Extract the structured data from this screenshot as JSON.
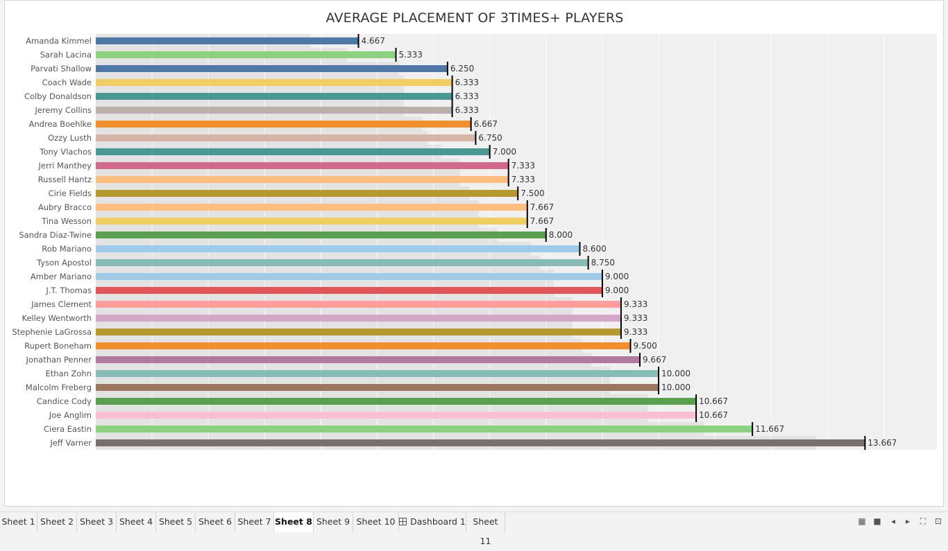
{
  "chart_data": {
    "type": "bar",
    "orientation": "horizontal",
    "title": "AVERAGE PLACEMENT OF 3TIMES+ PLAYERS",
    "xlabel": "",
    "ylabel": "",
    "xlim": [
      0,
      15
    ],
    "grid": true,
    "categories": [
      "Amanda Kimmel",
      "Sarah Lacina",
      "Parvati Shallow",
      "Coach Wade",
      "Colby Donaldson",
      "Jeremy Collins",
      "Andrea Boehlke",
      "Ozzy Lusth",
      "Tony Vlachos",
      "Jerri Manthey",
      "Russell Hantz",
      "Cirie Fields",
      "Aubry Bracco",
      "Tina Wesson",
      "Sandra Diaz-Twine",
      "Rob Mariano",
      "Tyson Apostol",
      "Amber Mariano",
      "J.T. Thomas",
      "James Clement",
      "Kelley Wentworth",
      "Stephenie LaGrossa",
      "Rupert Boneham",
      "Jonathan Penner",
      "Ethan Zohn",
      "Malcolm Freberg",
      "Candice Cody",
      "Joe Anglim",
      "Ciera Eastin",
      "Jeff Varner"
    ],
    "values": [
      4.667,
      5.333,
      6.25,
      6.333,
      6.333,
      6.333,
      6.667,
      6.75,
      7.0,
      7.333,
      7.333,
      7.5,
      7.667,
      7.667,
      8.0,
      8.6,
      8.75,
      9.0,
      9.0,
      9.333,
      9.333,
      9.333,
      9.5,
      9.667,
      10.0,
      10.0,
      10.667,
      10.667,
      11.667,
      13.667
    ],
    "value_labels": [
      "4.667",
      "5.333",
      "6.250",
      "6.333",
      "6.333",
      "6.333",
      "6.667",
      "6.750",
      "7.000",
      "7.333",
      "7.333",
      "7.500",
      "7.667",
      "7.667",
      "8.000",
      "8.600",
      "8.750",
      "9.000",
      "9.000",
      "9.333",
      "9.333",
      "9.333",
      "9.500",
      "9.667",
      "10.000",
      "10.000",
      "10.667",
      "10.667",
      "11.667",
      "13.667"
    ],
    "colors": [
      "#4e79a7",
      "#8cd17d",
      "#4e79a7",
      "#f1ce63",
      "#499894",
      "#bab0ac",
      "#f28e2b",
      "#d7b5a6",
      "#499894",
      "#d4698f",
      "#ffbe7d",
      "#b6992d",
      "#ffbe7d",
      "#f1ce63",
      "#59a14f",
      "#a0cbe8",
      "#86bcb6",
      "#a0cbe8",
      "#e15759",
      "#ff9d9a",
      "#d4a6c8",
      "#b6992d",
      "#f28e2b",
      "#b07aa1",
      "#86bcb6",
      "#9d7660",
      "#59a14f",
      "#fabfd2",
      "#8cd17d",
      "#79706e"
    ],
    "reference_line_color": "#000000",
    "background_band_color": "#f0f0f0"
  },
  "tabs": [
    {
      "label": "Sheet 1",
      "active": false
    },
    {
      "label": "Sheet 2",
      "active": false
    },
    {
      "label": "Sheet 3",
      "active": false
    },
    {
      "label": "Sheet 4",
      "active": false
    },
    {
      "label": "Sheet 5",
      "active": false
    },
    {
      "label": "Sheet 6",
      "active": false
    },
    {
      "label": "Sheet 7",
      "active": false
    },
    {
      "label": "Sheet 8",
      "active": true
    },
    {
      "label": "Sheet 9",
      "active": false
    },
    {
      "label": "Sheet 10",
      "active": false
    },
    {
      "label": "Dashboard 1",
      "active": false,
      "icon": "dashboard-icon"
    },
    {
      "label": "Sheet 11",
      "active": false
    }
  ],
  "controls": [
    {
      "name": "grid-view-icon",
      "glyph": "▦"
    },
    {
      "name": "filmstrip-view-icon",
      "glyph": "■"
    },
    {
      "name": "scroll-left-icon",
      "glyph": "◂"
    },
    {
      "name": "scroll-right-icon",
      "glyph": "▸"
    },
    {
      "name": "fullscreen-icon",
      "glyph": "⛶"
    },
    {
      "name": "presentation-mode-icon",
      "glyph": "⊡"
    }
  ]
}
